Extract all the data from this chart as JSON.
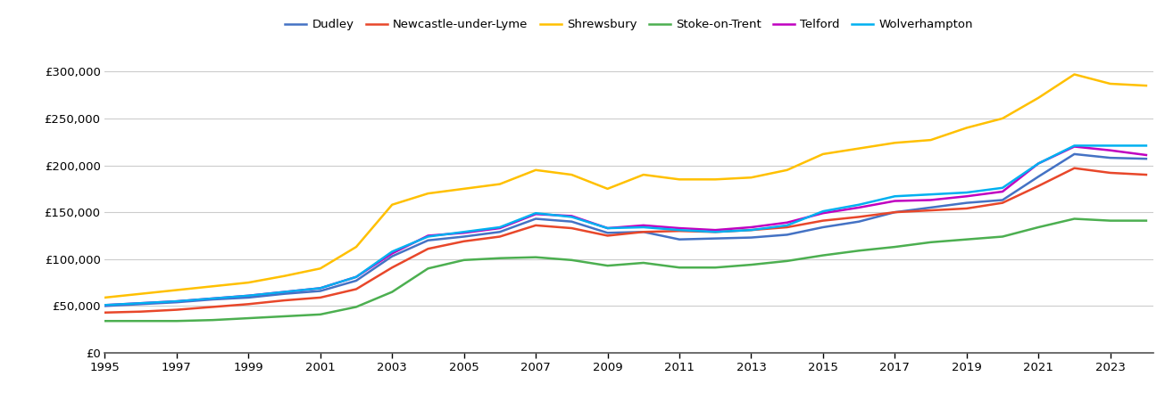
{
  "cities": [
    "Dudley",
    "Newcastle-under-Lyme",
    "Shrewsbury",
    "Stoke-on-Trent",
    "Telford",
    "Wolverhampton"
  ],
  "colors": [
    "#4472C4",
    "#E8472A",
    "#FFC000",
    "#4CAF50",
    "#C000C0",
    "#00B0F0"
  ],
  "years": [
    1995,
    1996,
    1997,
    1998,
    1999,
    2000,
    2001,
    2002,
    2003,
    2004,
    2005,
    2006,
    2007,
    2008,
    2009,
    2010,
    2011,
    2012,
    2013,
    2014,
    2015,
    2016,
    2017,
    2018,
    2019,
    2020,
    2021,
    2022,
    2023,
    2024
  ],
  "data": {
    "Dudley": [
      50000,
      52000,
      54000,
      57000,
      59000,
      63000,
      66000,
      77000,
      103000,
      120000,
      124000,
      129000,
      143000,
      140000,
      128000,
      129000,
      121000,
      122000,
      123000,
      126000,
      134000,
      140000,
      150000,
      155000,
      160000,
      163000,
      188000,
      212000,
      208000,
      207000
    ],
    "Newcastle-under-Lyme": [
      43000,
      44000,
      46000,
      49000,
      52000,
      56000,
      59000,
      68000,
      91000,
      111000,
      119000,
      124000,
      136000,
      133000,
      125000,
      129000,
      130000,
      129000,
      131000,
      134000,
      141000,
      145000,
      150000,
      152000,
      154000,
      160000,
      178000,
      197000,
      192000,
      190000
    ],
    "Shrewsbury": [
      59000,
      63000,
      67000,
      71000,
      75000,
      82000,
      90000,
      113000,
      158000,
      170000,
      175000,
      180000,
      195000,
      190000,
      175000,
      190000,
      185000,
      185000,
      187000,
      195000,
      212000,
      218000,
      224000,
      227000,
      240000,
      250000,
      272000,
      297000,
      287000,
      285000
    ],
    "Stoke-on-Trent": [
      34000,
      34000,
      34000,
      35000,
      37000,
      39000,
      41000,
      49000,
      65000,
      90000,
      99000,
      101000,
      102000,
      99000,
      93000,
      96000,
      91000,
      91000,
      94000,
      98000,
      104000,
      109000,
      113000,
      118000,
      121000,
      124000,
      134000,
      143000,
      141000,
      141000
    ],
    "Telford": [
      51000,
      53000,
      55000,
      58000,
      61000,
      65000,
      69000,
      81000,
      106000,
      125000,
      128000,
      133000,
      148000,
      146000,
      133000,
      136000,
      133000,
      131000,
      134000,
      139000,
      149000,
      155000,
      162000,
      163000,
      167000,
      172000,
      202000,
      220000,
      216000,
      211000
    ],
    "Wolverhampton": [
      51000,
      53000,
      55000,
      58000,
      61000,
      65000,
      69000,
      81000,
      108000,
      124000,
      129000,
      134000,
      149000,
      145000,
      133000,
      134000,
      131000,
      129000,
      131000,
      136000,
      151000,
      158000,
      167000,
      169000,
      171000,
      176000,
      202000,
      221000,
      221000,
      221000
    ]
  },
  "ylim": [
    0,
    325000
  ],
  "yticks": [
    0,
    50000,
    100000,
    150000,
    200000,
    250000,
    300000
  ],
  "ytick_labels": [
    "£0",
    "£50,000",
    "£100,000",
    "£150,000",
    "£200,000",
    "£250,000",
    "£300,000"
  ],
  "xtick_years": [
    1995,
    1997,
    1999,
    2001,
    2003,
    2005,
    2007,
    2009,
    2011,
    2013,
    2015,
    2017,
    2019,
    2021,
    2023
  ],
  "background_color": "#ffffff",
  "grid_color": "#cccccc",
  "line_width": 1.8
}
